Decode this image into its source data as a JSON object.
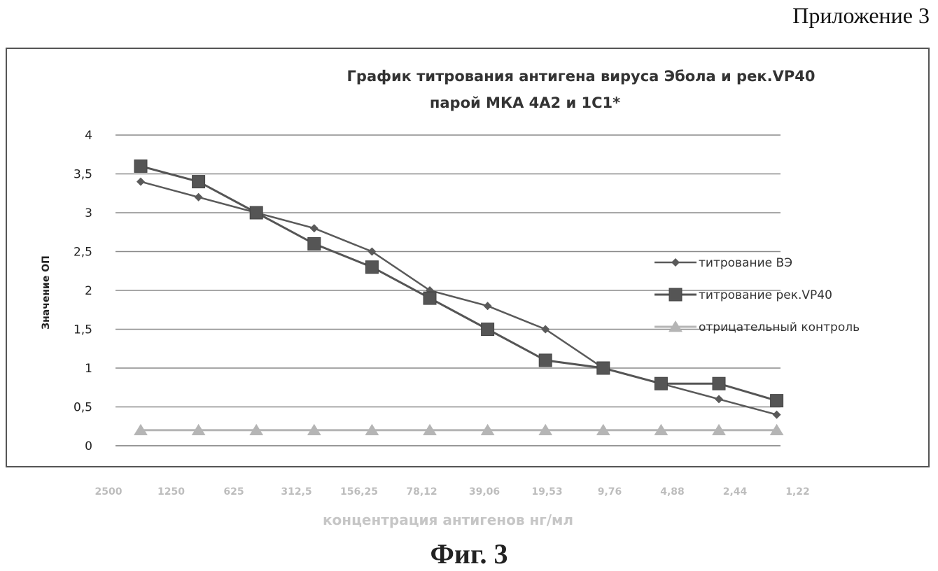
{
  "header": {
    "appendix": "Приложение 3"
  },
  "figure_caption": "Фиг. 3",
  "chart_data": {
    "type": "line",
    "title_lines": [
      "График титрования антигена вируса Эбола и рек.VP40",
      "парой МКА 4А2 и 1С1*"
    ],
    "ylabel": "Значение ОП",
    "xlabel": "концентрация антигенов нг/мл",
    "ylim": [
      0,
      4
    ],
    "yticks": [
      "0",
      "0,5",
      "1",
      "1,5",
      "2",
      "2,5",
      "3",
      "3,5",
      "4"
    ],
    "x_tick_labels": [
      "2500",
      "1250",
      "625",
      "312,5",
      "156,25",
      "78,12",
      "39,06",
      "19,53",
      "9,76",
      "4,88",
      "2,44",
      "1,22"
    ],
    "grid": true,
    "legend_position": "right",
    "series": [
      {
        "name": "титрование ВЭ",
        "marker": "diamond",
        "color": "#5a5a5a",
        "values": [
          3.4,
          3.2,
          3.0,
          2.8,
          2.5,
          2.0,
          1.8,
          1.5,
          1.0,
          0.8,
          0.6,
          0.4
        ]
      },
      {
        "name": "титрование рек.VP40",
        "marker": "square",
        "color": "#555555",
        "values": [
          3.6,
          3.4,
          3.0,
          2.6,
          2.3,
          1.9,
          1.5,
          1.1,
          1.0,
          0.8,
          0.8,
          0.58
        ]
      },
      {
        "name": "отрицательный контроль",
        "marker": "triangle",
        "color": "#b5b5b5",
        "values": [
          0.2,
          0.2,
          0.2,
          0.2,
          0.2,
          0.2,
          0.2,
          0.2,
          0.2,
          0.2,
          0.2,
          0.2
        ]
      }
    ]
  }
}
